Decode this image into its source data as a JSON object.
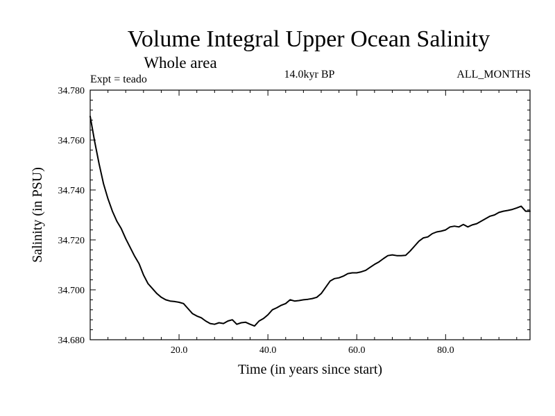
{
  "chart_data": {
    "type": "line",
    "title": "Volume Integral Upper Ocean Salinity",
    "subtitle": "Whole area",
    "annotations": {
      "left": "Expt = teado",
      "center": "14.0kyr BP",
      "right": "ALL_MONTHS"
    },
    "xlabel": "Time (in years since start)",
    "ylabel": "Salinity (in PSU)",
    "xlim": [
      0,
      99
    ],
    "ylim": [
      34.68,
      34.78
    ],
    "xticks": [
      20,
      40,
      60,
      80
    ],
    "xtick_labels": [
      "20.0",
      "40.0",
      "60.0",
      "80.0"
    ],
    "yticks": [
      34.68,
      34.7,
      34.72,
      34.74,
      34.76,
      34.78
    ],
    "ytick_labels": [
      "34.680",
      "34.700",
      "34.720",
      "34.740",
      "34.760",
      "34.780"
    ],
    "series": [
      {
        "name": "Salinity",
        "x": [
          0,
          1,
          2,
          3,
          4,
          5,
          6,
          7,
          8,
          9,
          10,
          11,
          12,
          13,
          14,
          15,
          16,
          17,
          18,
          19,
          20,
          21,
          22,
          23,
          24,
          25,
          26,
          27,
          28,
          29,
          30,
          31,
          32,
          33,
          34,
          35,
          36,
          37,
          38,
          39,
          40,
          41,
          42,
          43,
          44,
          45,
          46,
          47,
          48,
          49,
          50,
          51,
          52,
          53,
          54,
          55,
          56,
          57,
          58,
          59,
          60,
          61,
          62,
          63,
          64,
          65,
          66,
          67,
          68,
          69,
          70,
          71,
          72,
          73,
          74,
          75,
          76,
          77,
          78,
          79,
          80,
          81,
          82,
          83,
          84,
          85,
          86,
          87,
          88,
          89,
          90,
          91,
          92,
          93,
          94,
          95,
          96,
          97,
          98,
          99
        ],
        "values": [
          34.7695,
          34.7595,
          34.7505,
          34.7425,
          34.7365,
          34.7315,
          34.7275,
          34.7245,
          34.7205,
          34.717,
          34.7135,
          34.7105,
          34.706,
          34.7025,
          34.7005,
          34.6985,
          34.697,
          34.696,
          34.6955,
          34.6953,
          34.695,
          34.6945,
          34.6925,
          34.6905,
          34.6895,
          34.6888,
          34.6875,
          34.6865,
          34.6862,
          34.6868,
          34.6865,
          34.6875,
          34.688,
          34.6862,
          34.6868,
          34.687,
          34.6862,
          34.6855,
          34.6875,
          34.6885,
          34.69,
          34.692,
          34.6928,
          34.6938,
          34.6945,
          34.696,
          34.6955,
          34.6957,
          34.696,
          34.6962,
          34.6965,
          34.697,
          34.6985,
          34.701,
          34.7035,
          34.7045,
          34.7048,
          34.7055,
          34.7065,
          34.7068,
          34.7068,
          34.7072,
          34.7078,
          34.709,
          34.7102,
          34.7112,
          34.7125,
          34.7137,
          34.714,
          34.7137,
          34.7137,
          34.7138,
          34.7155,
          34.7175,
          34.7195,
          34.7208,
          34.7212,
          34.7225,
          34.7232,
          34.7235,
          34.724,
          34.7252,
          34.7255,
          34.7252,
          34.7262,
          34.7252,
          34.726,
          34.7265,
          34.7275,
          34.7285,
          34.7295,
          34.73,
          34.731,
          34.7315,
          34.7318,
          34.7322,
          34.7328,
          34.7335,
          34.7315,
          34.7315
        ]
      }
    ]
  }
}
